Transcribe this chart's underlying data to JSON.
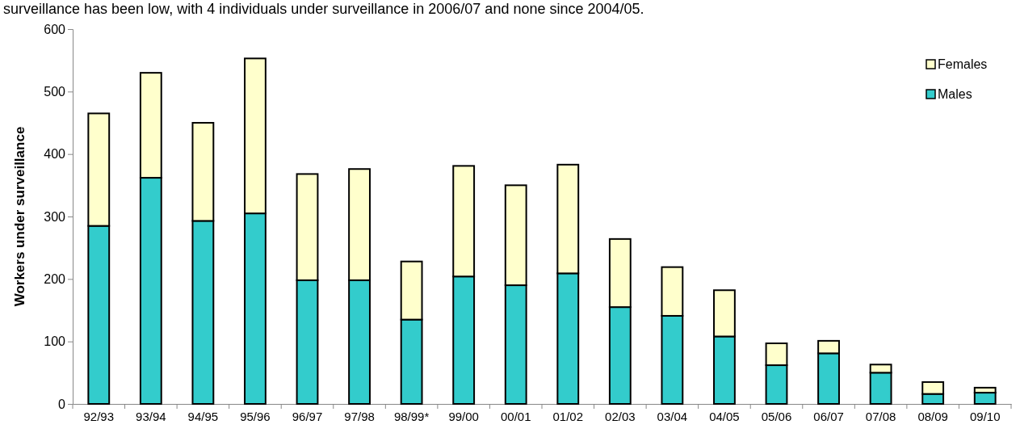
{
  "chart_data": {
    "type": "bar",
    "stacked": true,
    "annotations": [
      "surveillance has been low, with 4 individuals under surveillance in 2006/07 and none since 2004/05."
    ],
    "ylabel": "Workers under surveillance",
    "categories": [
      "92/93",
      "93/94",
      "94/95",
      "95/96",
      "96/97",
      "97/98",
      "98/99*",
      "99/00",
      "00/01",
      "01/02",
      "02/03",
      "03/04",
      "04/05",
      "05/06",
      "06/07",
      "07/08",
      "08/09",
      "09/10"
    ],
    "series": [
      {
        "name": "Males",
        "color": "#33cccc",
        "values": [
          285,
          362,
          293,
          305,
          198,
          198,
          135,
          204,
          190,
          209,
          155,
          141,
          108,
          62,
          81,
          50,
          16,
          18
        ]
      },
      {
        "name": "Females",
        "color": "#ffffcc",
        "values": [
          180,
          168,
          157,
          248,
          170,
          178,
          93,
          177,
          160,
          174,
          109,
          78,
          74,
          35,
          20,
          13,
          19,
          8
        ]
      }
    ],
    "ylim": [
      0,
      600
    ],
    "yticks": [
      0,
      100,
      200,
      300,
      400,
      500,
      600
    ],
    "legend": "top right"
  }
}
